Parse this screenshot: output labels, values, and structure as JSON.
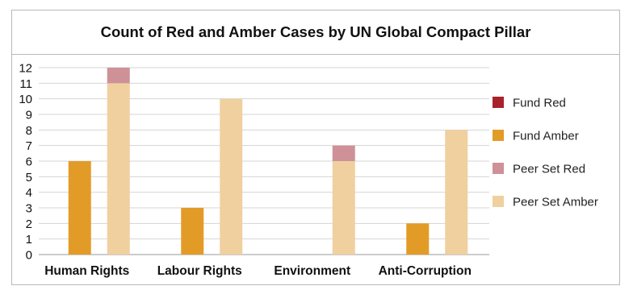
{
  "chart_data": {
    "type": "bar",
    "title": "Count of Red and Amber Cases by UN Global Compact Pillar",
    "categories": [
      "Human Rights",
      "Labour Rights",
      "Environment",
      "Anti-Corruption"
    ],
    "ylim": [
      0,
      12
    ],
    "yticks": [
      0,
      1,
      2,
      3,
      4,
      5,
      6,
      7,
      8,
      9,
      10,
      11,
      12
    ],
    "grid": true,
    "legend_position": "right",
    "stacks": [
      {
        "name": "Fund",
        "series": [
          "Fund Red",
          "Fund Amber"
        ]
      },
      {
        "name": "Peer Set",
        "series": [
          "Peer Set Red",
          "Peer Set Amber"
        ]
      }
    ],
    "series": [
      {
        "name": "Fund Red",
        "color": "#a8222b",
        "values": [
          0,
          0,
          0,
          0
        ]
      },
      {
        "name": "Fund Amber",
        "color": "#e39b27",
        "values": [
          6,
          3,
          0,
          2
        ]
      },
      {
        "name": "Peer Set Red",
        "color": "#cf9198",
        "values": [
          1,
          0,
          1,
          0
        ]
      },
      {
        "name": "Peer Set Amber",
        "color": "#f0d09f",
        "values": [
          11,
          10,
          6,
          8
        ]
      }
    ]
  }
}
